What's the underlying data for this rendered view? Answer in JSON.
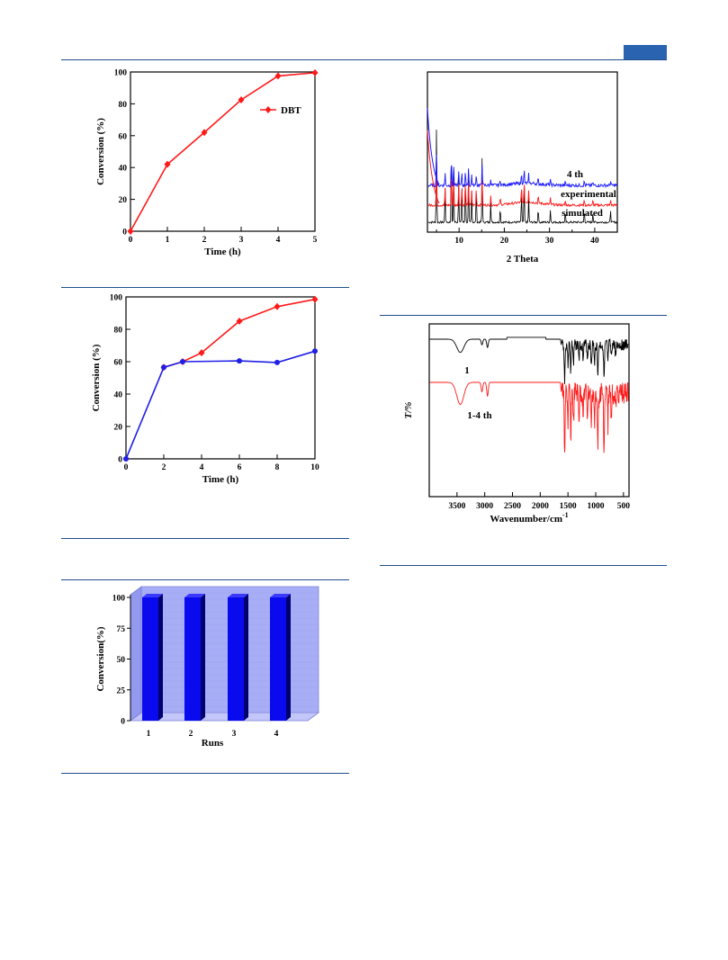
{
  "chart_data": [
    {
      "id": "conv-vs-time",
      "type": "line",
      "xlabel": "Time (h)",
      "ylabel": "Conversion (%)",
      "xlim": [
        0,
        5
      ],
      "ylim": [
        0,
        100
      ],
      "xticks": [
        0,
        1,
        2,
        3,
        4,
        5
      ],
      "yticks": [
        0,
        20,
        40,
        60,
        80,
        100
      ],
      "legend": "top-right",
      "series": [
        {
          "name": "DBT",
          "color": "#ff1a1a",
          "marker": "diamond",
          "x": [
            0,
            1,
            2,
            3,
            4,
            5
          ],
          "values": [
            0,
            42,
            62,
            82.5,
            97.5,
            99.5
          ]
        }
      ]
    },
    {
      "id": "filtration",
      "type": "line",
      "xlabel": "Time (h)",
      "ylabel": "Conversion (%)",
      "xlim": [
        0,
        10
      ],
      "ylim": [
        0,
        100
      ],
      "xticks": [
        0,
        2,
        4,
        6,
        8,
        10
      ],
      "yticks": [
        0,
        20,
        40,
        60,
        80,
        100
      ],
      "series": [
        {
          "color": "#ff1a1a",
          "marker": "diamond",
          "x": [
            2,
            3,
            4,
            6,
            8,
            10
          ],
          "values": [
            56.5,
            60,
            65.5,
            85,
            94,
            98.5
          ]
        },
        {
          "color": "#1f1fe6",
          "marker": "circle",
          "x": [
            0,
            2,
            3,
            6,
            8,
            10
          ],
          "values": [
            0,
            56.5,
            60,
            60.5,
            59.5,
            66.5
          ]
        }
      ]
    },
    {
      "id": "recycle",
      "type": "bar",
      "xlabel": "Runs",
      "ylabel": "Conversion(%)",
      "categories": [
        "1",
        "2",
        "3",
        "4"
      ],
      "values": [
        100,
        100,
        100,
        100
      ],
      "ylim": [
        0,
        100
      ],
      "yticks": [
        0,
        25,
        50,
        75,
        100
      ],
      "color": "#0a0aee",
      "background": "#a8aef5"
    },
    {
      "id": "pxrd",
      "type": "line",
      "xlabel": "2 Theta",
      "xlim": [
        3,
        45
      ],
      "xticks": [
        10,
        20,
        30,
        40
      ],
      "grid": false,
      "series": [
        {
          "name": "4 th",
          "color": "#1a1aff"
        },
        {
          "name": "experimental",
          "color": "#ff1a1a"
        },
        {
          "name": "simulated",
          "color": "#000000"
        }
      ]
    },
    {
      "id": "ftir",
      "type": "line",
      "xlabel": "Wavenumber/cm",
      "xlabel_superscript": "-1",
      "ylabel": "T/%",
      "xlim": [
        4000,
        400
      ],
      "xticks": [
        3500,
        3000,
        2500,
        2000,
        1500,
        1000,
        500
      ],
      "series": [
        {
          "name": "1",
          "color": "#000000"
        },
        {
          "name": "1-4 th",
          "color": "#ff1a1a"
        }
      ]
    }
  ]
}
